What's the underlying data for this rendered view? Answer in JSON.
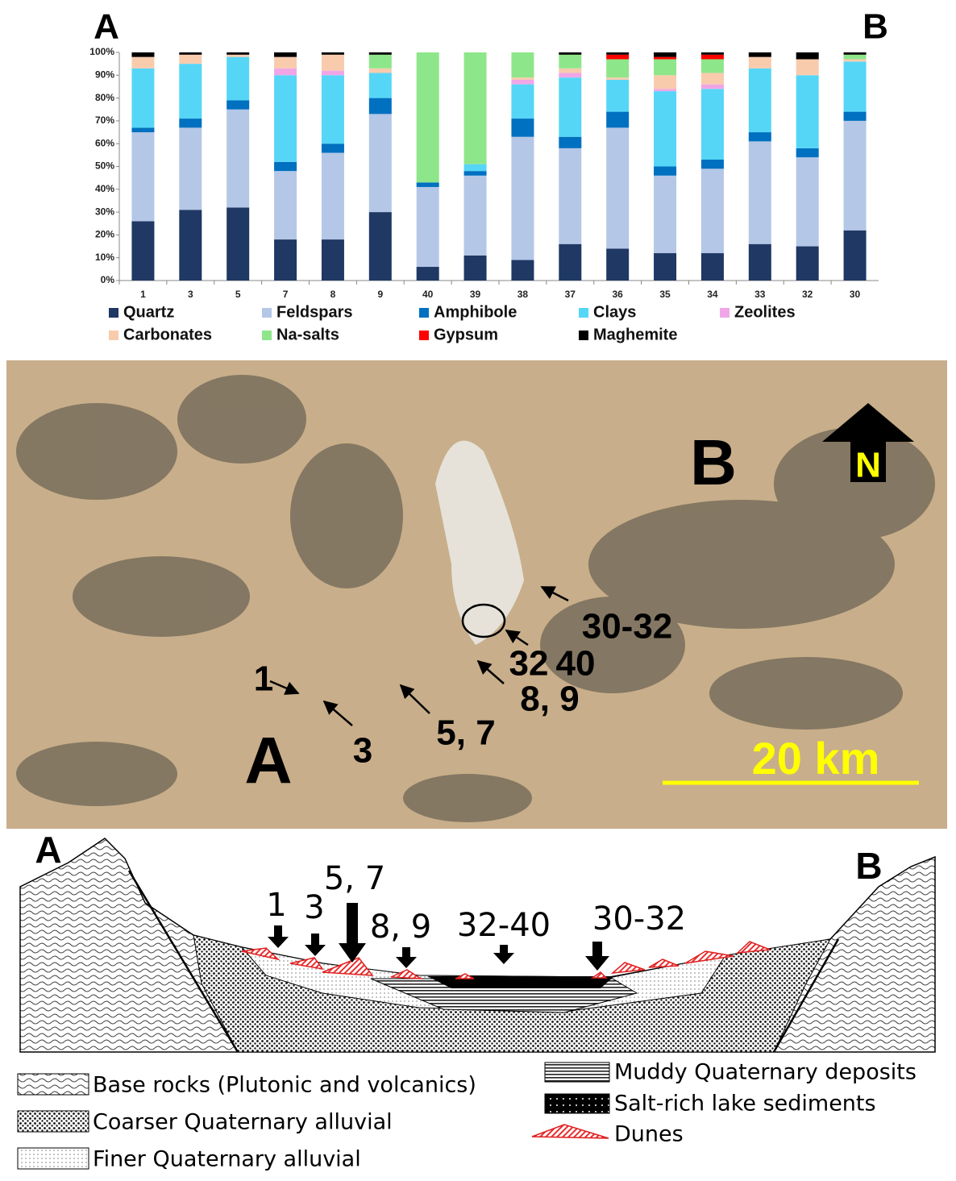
{
  "chart_data": {
    "type": "bar",
    "stacked": true,
    "categories": [
      "1",
      "3",
      "5",
      "7",
      "8",
      "9",
      "40",
      "39",
      "38",
      "37",
      "36",
      "35",
      "34",
      "33",
      "32",
      "30"
    ],
    "series": [
      {
        "name": "Quartz",
        "color": "#1f3864",
        "values": [
          26,
          31,
          32,
          18,
          18,
          30,
          6,
          11,
          9,
          16,
          14,
          12,
          12,
          16,
          15,
          22
        ]
      },
      {
        "name": "Feldspars",
        "color": "#b4c7e7",
        "values": [
          39,
          36,
          43,
          30,
          38,
          43,
          35,
          35,
          54,
          42,
          53,
          34,
          37,
          45,
          39,
          48
        ]
      },
      {
        "name": "Amphibole",
        "color": "#0070c0",
        "values": [
          2,
          4,
          4,
          4,
          4,
          7,
          2,
          2,
          8,
          5,
          7,
          4,
          4,
          4,
          4,
          4
        ]
      },
      {
        "name": "Clays",
        "color": "#55d6f7",
        "values": [
          26,
          24,
          19,
          38,
          30,
          11,
          0,
          3,
          15,
          26,
          14,
          33,
          31,
          28,
          32,
          22
        ]
      },
      {
        "name": "Zeolites",
        "color": "#f0a6e6",
        "values": [
          0,
          0,
          0,
          3,
          2,
          0,
          0,
          0,
          2,
          2,
          0,
          1,
          2,
          0,
          0,
          0
        ]
      },
      {
        "name": "Carbonates",
        "color": "#f8cbad",
        "values": [
          5,
          4,
          1,
          5,
          7,
          2,
          0,
          0,
          1,
          2,
          1,
          6,
          5,
          5,
          7,
          1
        ]
      },
      {
        "name": "Na-salts",
        "color": "#8ee68a",
        "values": [
          0,
          0,
          0,
          0,
          0,
          6,
          57,
          49,
          11,
          6,
          8,
          7,
          6,
          0,
          0,
          2
        ]
      },
      {
        "name": "Gypsum",
        "color": "#ff0000",
        "values": [
          0,
          0,
          0,
          0,
          0,
          0,
          0,
          0,
          0,
          0,
          2,
          1,
          2,
          0,
          0,
          0
        ]
      },
      {
        "name": "Maghemite",
        "color": "#000000",
        "values": [
          2,
          1,
          1,
          2,
          1,
          1,
          0,
          0,
          0,
          1,
          1,
          2,
          1,
          2,
          3,
          1
        ]
      }
    ],
    "ylim": [
      0,
      100
    ],
    "yticks": [
      {
        "value": 0,
        "label": "0%"
      },
      {
        "value": 10,
        "label": "10%"
      },
      {
        "value": 20,
        "label": "20%"
      },
      {
        "value": 30,
        "label": "30%"
      },
      {
        "value": 40,
        "label": "40%"
      },
      {
        "value": 50,
        "label": "50%"
      },
      {
        "value": 60,
        "label": "60%"
      },
      {
        "value": 70,
        "label": "70%"
      },
      {
        "value": 80,
        "label": "80%"
      },
      {
        "value": 90,
        "label": "90%"
      },
      {
        "value": 100,
        "label": "100%"
      }
    ],
    "grid": false
  },
  "chart_ends": {
    "left": "A",
    "right": "B"
  },
  "map": {
    "labels": [
      "B",
      "N",
      "30-32",
      "32",
      "40",
      "8, 9",
      "1",
      "3",
      "5, 7",
      "A",
      "20 km"
    ]
  },
  "section": {
    "ends": [
      "A",
      "B"
    ],
    "samples": [
      "1",
      "3",
      "5, 7",
      "8, 9",
      "32-40",
      "30-32"
    ],
    "legend": [
      "Base rocks (Plutonic and volcanics)",
      "Coarser Quaternary alluvial",
      "Finer Quaternary alluvial",
      "Muddy Quaternary deposits",
      "Salt-rich lake sediments",
      "Dunes"
    ]
  }
}
